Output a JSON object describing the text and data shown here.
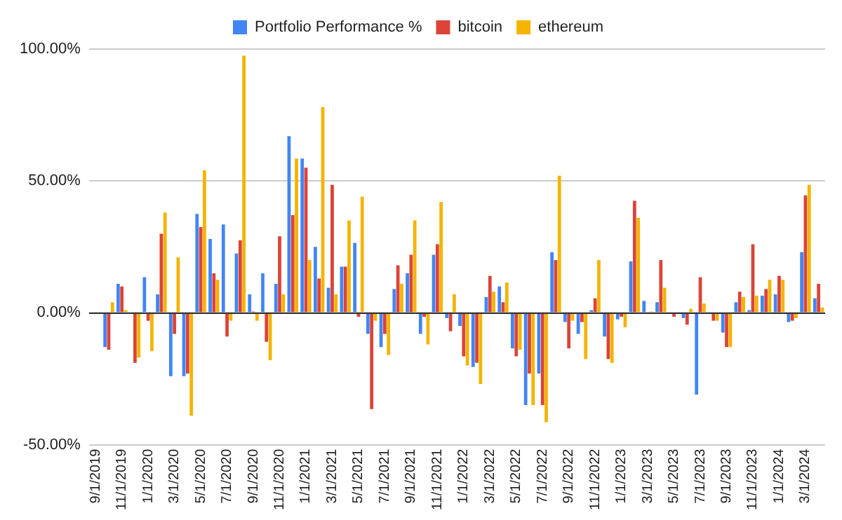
{
  "chart_data": {
    "type": "bar",
    "categories": [
      "9/1/2019",
      null,
      "11/1/2019",
      null,
      "1/1/2020",
      null,
      "3/1/2020",
      null,
      "5/1/2020",
      null,
      "7/1/2020",
      null,
      "9/1/2020",
      null,
      "11/1/2020",
      null,
      "1/1/2021",
      null,
      "3/1/2021",
      null,
      "5/1/2021",
      null,
      "7/1/2021",
      null,
      "9/1/2021",
      null,
      "11/1/2021",
      null,
      "1/1/2022",
      null,
      "3/1/2022",
      null,
      "5/1/2022",
      null,
      "7/1/2022",
      null,
      "9/1/2022",
      null,
      "11/1/2022",
      null,
      "1/1/2023",
      null,
      "3/1/2023",
      null,
      "5/1/2023",
      null,
      "7/1/2023",
      null,
      "9/1/2023",
      null,
      "11/1/2023",
      null,
      "1/1/2024",
      null,
      "3/1/2024",
      null
    ],
    "series": [
      {
        "name": "Portfolio Performance %",
        "color": "#4285f4",
        "values": [
          null,
          -13,
          11,
          null,
          13.5,
          7,
          -24,
          -24,
          37.5,
          28,
          33.5,
          22.5,
          7,
          15,
          11,
          67,
          58.5,
          25,
          9.5,
          17.5,
          26.5,
          -8,
          -13,
          9,
          15,
          -8,
          22,
          -2,
          -5,
          -20.5,
          6,
          10,
          -13.5,
          -35,
          -23,
          23,
          -3.5,
          -8,
          1,
          -9,
          -2.5,
          19.5,
          4.5,
          4,
          0,
          -2,
          -31,
          0,
          -7.5,
          4,
          1,
          6.5,
          7,
          -3.5,
          23,
          5.5
        ]
      },
      {
        "name": "bitcoin",
        "color": "#db4437",
        "values": [
          null,
          -14,
          10,
          -19,
          -3,
          30,
          -8,
          -23,
          32.5,
          15,
          -9,
          27.5,
          0.5,
          -11,
          29,
          37,
          55,
          13,
          48.5,
          17.5,
          -1.5,
          -36.5,
          -8,
          18,
          22,
          -1.5,
          26,
          -7,
          -16.5,
          -19,
          14,
          4,
          -16.5,
          -23,
          -35,
          20,
          -13.5,
          -3.5,
          5.5,
          -17.5,
          -1.5,
          42.5,
          0,
          20,
          -1.5,
          -4.5,
          13.5,
          -3,
          -13,
          8,
          26,
          9,
          14,
          -3,
          44.5,
          11
        ]
      },
      {
        "name": "ethereum",
        "color": "#f4b400",
        "values": [
          null,
          4,
          1,
          -17,
          -14.5,
          38,
          21,
          -39,
          54,
          12.5,
          -3,
          97.5,
          -3,
          -18,
          7,
          58.5,
          20,
          78,
          7,
          35,
          44,
          -3,
          -16,
          11,
          35,
          -12,
          42,
          7,
          -20,
          -27,
          8,
          11.5,
          -14,
          -35,
          -41.5,
          52,
          -3,
          -17.5,
          20,
          -19,
          -5.5,
          36,
          0.5,
          9.5,
          null,
          1.5,
          3.5,
          -3,
          -13,
          6,
          6.5,
          12.5,
          12.5,
          -2,
          48.5,
          2
        ]
      }
    ],
    "ylim": [
      -50,
      100
    ],
    "yticks": [
      {
        "value": -50,
        "label": "-50.00%"
      },
      {
        "value": 0,
        "label": "0.00%"
      },
      {
        "value": 50,
        "label": "50.00%"
      },
      {
        "value": 100,
        "label": "100.00%"
      }
    ],
    "grid": "y",
    "legend": "top"
  }
}
